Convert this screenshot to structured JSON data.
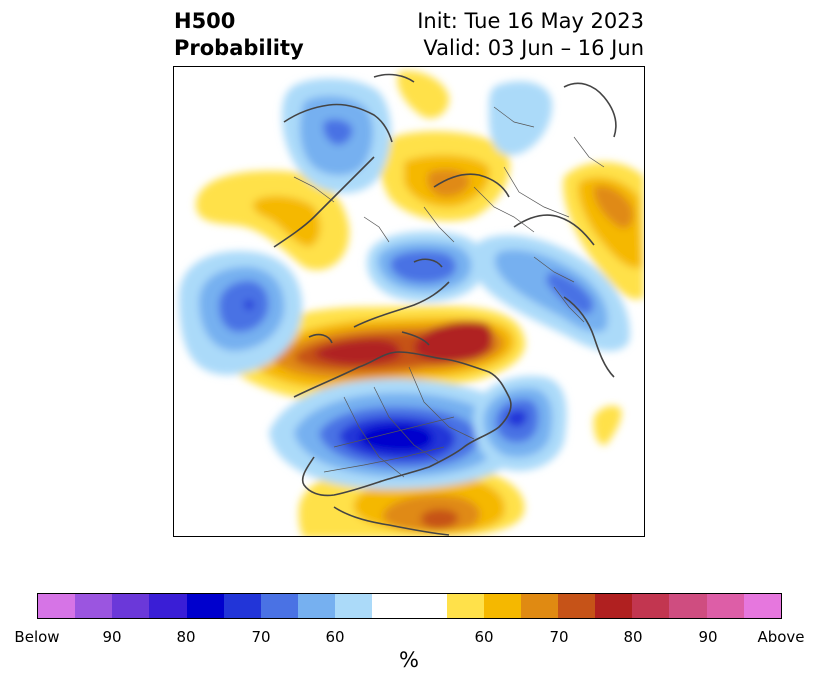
{
  "title": {
    "left_line1": "H500",
    "left_line2": "Probability",
    "right_line1": "Init: Tue 16 May 2023",
    "right_line2": "Valid: 03 Jun – 16 Jun"
  },
  "colorbar": {
    "unit": "%",
    "colors": [
      "#d674e6",
      "#9b55e0",
      "#6b38d9",
      "#3a1ed6",
      "#0000cd",
      "#2235d8",
      "#4a72e4",
      "#76b0f0",
      "#abdaf9",
      "#ffffff",
      "#ffffff",
      "#ffe14a",
      "#f5b800",
      "#e08a12",
      "#c65318",
      "#b02020",
      "#c23650",
      "#cf4d80",
      "#dd5ea7",
      "#e677de"
    ],
    "tick_labels": [
      "Below",
      "90",
      "80",
      "70",
      "60",
      "60",
      "70",
      "80",
      "90",
      "Above"
    ]
  },
  "map": {
    "colors": {
      "above_60": "#ffe14a",
      "above_65": "#f5b800",
      "above_70": "#e08a12",
      "above_75": "#c65318",
      "above_80": "#b02020",
      "below_60": "#abdaf9",
      "below_65": "#76b0f0",
      "below_70": "#4a72e4",
      "below_75": "#2235d8",
      "below_80": "#0000cd"
    }
  }
}
